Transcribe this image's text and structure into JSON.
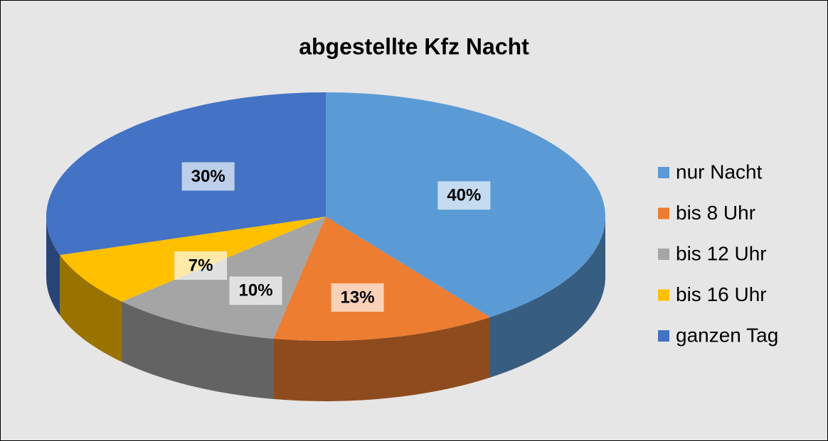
{
  "chart_data": {
    "type": "pie3d",
    "title": "abgestellte Kfz Nacht",
    "categories": [
      "nur Nacht",
      "bis 8 Uhr",
      "bis 12 Uhr",
      "bis 16 Uhr",
      "ganzen Tag"
    ],
    "values": [
      40,
      13,
      10,
      7,
      30
    ],
    "value_labels": [
      "40%",
      "13%",
      "10%",
      "7%",
      "30%"
    ],
    "colors": [
      "#5b9bd5",
      "#ed7d31",
      "#a5a5a5",
      "#ffc000",
      "#4472c4"
    ],
    "legend": "right"
  }
}
